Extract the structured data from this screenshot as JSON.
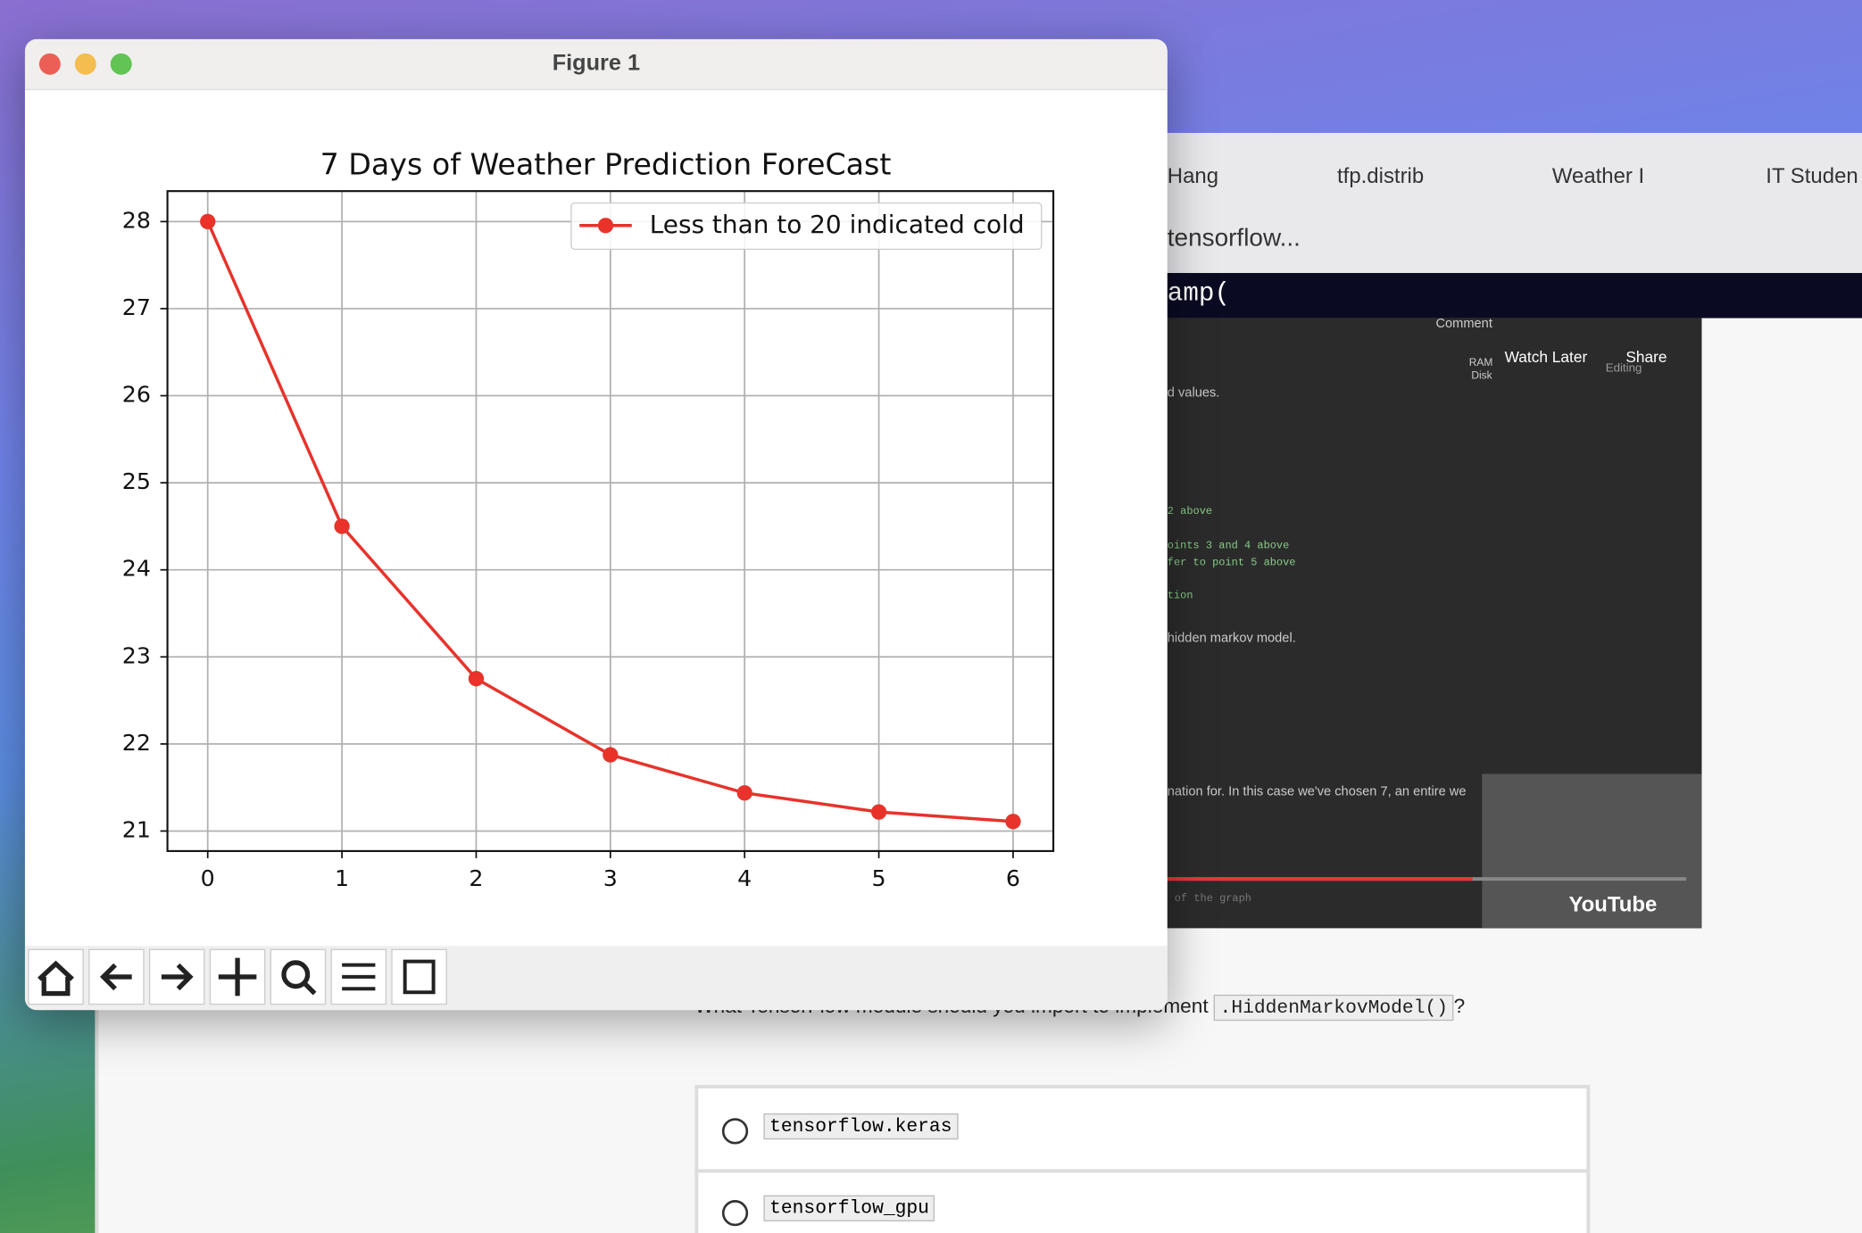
{
  "window": {
    "title": "Figure 1"
  },
  "chart_data": {
    "type": "line",
    "title": "7 Days of Weather Prediction ForeCast",
    "x": [
      0,
      1,
      2,
      3,
      4,
      5,
      6
    ],
    "series": [
      {
        "name": "Less than to 20 indicated cold",
        "color": "#e8322a",
        "values": [
          28,
          24.5,
          22.75,
          21.875,
          21.4375,
          21.21875,
          21.109375
        ]
      }
    ],
    "xlim": [
      -0.3,
      6.3
    ],
    "xticks": [
      0,
      1,
      2,
      3,
      4,
      5,
      6
    ],
    "ylim": [
      20.77,
      28.35
    ],
    "yticks": [
      21,
      22,
      23,
      24,
      25,
      26,
      27,
      28
    ],
    "grid": true,
    "legend": "upper right"
  },
  "browser": {
    "tabs": [
      "Hang",
      "tfp.distrib",
      "Weather I",
      "IT Studen"
    ],
    "address": "tensorflow...",
    "banner": "amp(",
    "video": {
      "controls": [
        "Comment",
        "Watch Later",
        "Share",
        "RAM",
        "Disk",
        "Editing"
      ],
      "lines": [
        "d values.",
        "2 above",
        "oints 3 and 4 above",
        "fer to point 5 above",
        "tion",
        "hidden markov model.",
        "nation for. In this case we've chosen 7, an entire we",
        "of the graph"
      ],
      "logo": "YouTube"
    }
  },
  "quiz": {
    "question": "What TensorFlow module should you import to implement",
    "code": ".HiddenMarkovModel()",
    "end": "?",
    "options": [
      "tensorflow.keras",
      "tensorflow_gpu"
    ]
  }
}
